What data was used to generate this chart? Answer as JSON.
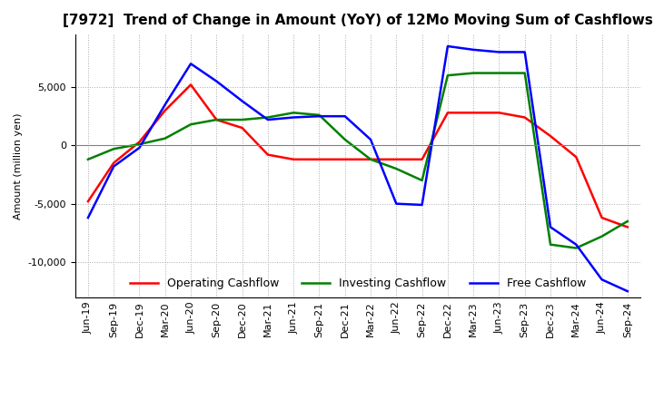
{
  "title": "[7972]  Trend of Change in Amount (YoY) of 12Mo Moving Sum of Cashflows",
  "ylabel": "Amount (million yen)",
  "x_labels": [
    "Jun-19",
    "Sep-19",
    "Dec-19",
    "Mar-20",
    "Jun-20",
    "Sep-20",
    "Dec-20",
    "Mar-21",
    "Jun-21",
    "Sep-21",
    "Dec-21",
    "Mar-22",
    "Jun-22",
    "Sep-22",
    "Dec-22",
    "Mar-23",
    "Jun-23",
    "Sep-23",
    "Dec-23",
    "Mar-24",
    "Jun-24",
    "Sep-24"
  ],
  "operating": [
    -4800,
    -1500,
    300,
    3000,
    5200,
    2200,
    1500,
    -800,
    -1200,
    -1200,
    -1200,
    -1200,
    -1200,
    -1200,
    2800,
    2800,
    2800,
    2400,
    800,
    -1000,
    -6200,
    -7000
  ],
  "investing": [
    -1200,
    -300,
    100,
    600,
    1800,
    2200,
    2200,
    2400,
    2800,
    2600,
    500,
    -1200,
    -2000,
    -3000,
    6000,
    6200,
    6200,
    6200,
    -8500,
    -8800,
    -7800,
    -6500
  ],
  "free": [
    -6200,
    -1800,
    -200,
    3500,
    7000,
    5500,
    3800,
    2200,
    2400,
    2500,
    2500,
    500,
    -5000,
    -5100,
    8500,
    8200,
    8000,
    8000,
    -7000,
    -8500,
    -11500,
    -12500
  ],
  "operating_color": "#ff0000",
  "investing_color": "#008000",
  "free_color": "#0000ff",
  "ylim": [
    -13000,
    9500
  ],
  "yticks": [
    -10000,
    -5000,
    0,
    5000
  ],
  "grid_color": "#aaaaaa",
  "bg_color": "#ffffff",
  "title_fontsize": 11,
  "axis_fontsize": 8,
  "legend_fontsize": 9
}
